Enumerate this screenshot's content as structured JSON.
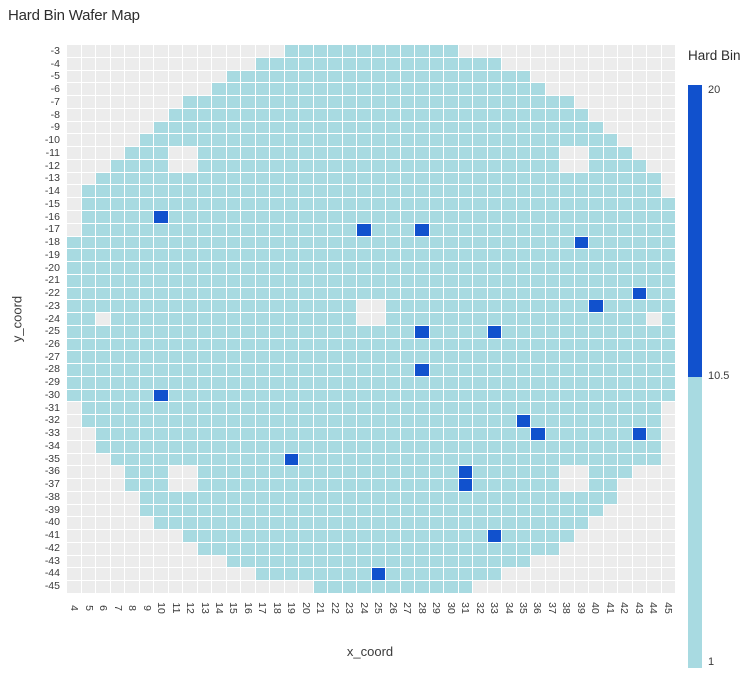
{
  "title": "Hard Bin Wafer Map",
  "axes": {
    "x_label": "x_coord",
    "y_label": "y_coord",
    "x_ticks": [
      "4",
      "5",
      "6",
      "7",
      "8",
      "9",
      "10",
      "11",
      "12",
      "13",
      "14",
      "15",
      "16",
      "17",
      "18",
      "19",
      "20",
      "21",
      "22",
      "23",
      "24",
      "25",
      "26",
      "27",
      "28",
      "29",
      "30",
      "31",
      "32",
      "33",
      "34",
      "35",
      "36",
      "37",
      "38",
      "39",
      "40",
      "41",
      "42",
      "43",
      "44",
      "45"
    ],
    "y_ticks": [
      "-3",
      "-4",
      "-5",
      "-6",
      "-7",
      "-8",
      "-9",
      "-10",
      "-11",
      "-12",
      "-13",
      "-14",
      "-15",
      "-16",
      "-17",
      "-18",
      "-19",
      "-20",
      "-21",
      "-22",
      "-23",
      "-24",
      "-25",
      "-26",
      "-27",
      "-28",
      "-29",
      "-30",
      "-31",
      "-32",
      "-33",
      "-34",
      "-35",
      "-36",
      "-37",
      "-38",
      "-39",
      "-40",
      "-41",
      "-42",
      "-43",
      "-44",
      "-45"
    ]
  },
  "colorbar": {
    "title": "Hard Bin",
    "ticks": [
      {
        "label": "20"
      },
      {
        "label": "10.5"
      },
      {
        "label": "1"
      }
    ],
    "high_value": 20,
    "mid_value": 10.5,
    "low_value": 1
  },
  "chart_data": {
    "type": "heatmap",
    "subtype": "wafer-bin-map",
    "x_range": [
      4,
      45
    ],
    "y_range_top_to_bottom": [
      -3,
      -45
    ],
    "grid_on": true,
    "legend_position": "right",
    "colors": {
      "pass_die": "#a8dae1",
      "fail_die": "#1151cd",
      "plot_background_cell": "#ececec",
      "gridline": "#ffffff"
    },
    "bin_values": {
      "pass_bin": 1,
      "fail_bin": 20
    },
    "wafer_rows": [
      {
        "y": -3,
        "x_min": 19,
        "x_max": 30
      },
      {
        "y": -4,
        "x_min": 17,
        "x_max": 33
      },
      {
        "y": -5,
        "x_min": 15,
        "x_max": 35
      },
      {
        "y": -6,
        "x_min": 14,
        "x_max": 36
      },
      {
        "y": -7,
        "x_min": 12,
        "x_max": 38
      },
      {
        "y": -8,
        "x_min": 11,
        "x_max": 39
      },
      {
        "y": -9,
        "x_min": 10,
        "x_max": 40
      },
      {
        "y": -10,
        "x_min": 9,
        "x_max": 41
      },
      {
        "y": -11,
        "x_min": 8,
        "x_max": 42
      },
      {
        "y": -12,
        "x_min": 7,
        "x_max": 43
      },
      {
        "y": -13,
        "x_min": 6,
        "x_max": 44
      },
      {
        "y": -14,
        "x_min": 5,
        "x_max": 44
      },
      {
        "y": -15,
        "x_min": 5,
        "x_max": 45
      },
      {
        "y": -16,
        "x_min": 5,
        "x_max": 45
      },
      {
        "y": -17,
        "x_min": 5,
        "x_max": 45
      },
      {
        "y": -18,
        "x_min": 4,
        "x_max": 45
      },
      {
        "y": -19,
        "x_min": 4,
        "x_max": 45
      },
      {
        "y": -20,
        "x_min": 4,
        "x_max": 45
      },
      {
        "y": -21,
        "x_min": 4,
        "x_max": 45
      },
      {
        "y": -22,
        "x_min": 4,
        "x_max": 45
      },
      {
        "y": -23,
        "x_min": 4,
        "x_max": 45
      },
      {
        "y": -24,
        "x_min": 4,
        "x_max": 45
      },
      {
        "y": -25,
        "x_min": 4,
        "x_max": 45
      },
      {
        "y": -26,
        "x_min": 4,
        "x_max": 45
      },
      {
        "y": -27,
        "x_min": 4,
        "x_max": 45
      },
      {
        "y": -28,
        "x_min": 4,
        "x_max": 45
      },
      {
        "y": -29,
        "x_min": 4,
        "x_max": 45
      },
      {
        "y": -30,
        "x_min": 4,
        "x_max": 45
      },
      {
        "y": -31,
        "x_min": 5,
        "x_max": 44
      },
      {
        "y": -32,
        "x_min": 5,
        "x_max": 44
      },
      {
        "y": -33,
        "x_min": 6,
        "x_max": 44
      },
      {
        "y": -34,
        "x_min": 6,
        "x_max": 44
      },
      {
        "y": -35,
        "x_min": 7,
        "x_max": 44
      },
      {
        "y": -36,
        "x_min": 8,
        "x_max": 42
      },
      {
        "y": -37,
        "x_min": 8,
        "x_max": 41
      },
      {
        "y": -38,
        "x_min": 9,
        "x_max": 41
      },
      {
        "y": -39,
        "x_min": 9,
        "x_max": 40
      },
      {
        "y": -40,
        "x_min": 10,
        "x_max": 39
      },
      {
        "y": -41,
        "x_min": 12,
        "x_max": 38
      },
      {
        "y": -42,
        "x_min": 13,
        "x_max": 37
      },
      {
        "y": -43,
        "x_min": 15,
        "x_max": 35
      },
      {
        "y": -44,
        "x_min": 17,
        "x_max": 33
      },
      {
        "y": -45,
        "x_min": 21,
        "x_max": 31
      }
    ],
    "bin20_cells": [
      [
        10,
        -16
      ],
      [
        24,
        -17
      ],
      [
        28,
        -17
      ],
      [
        39,
        -18
      ],
      [
        43,
        -22
      ],
      [
        40,
        -23
      ],
      [
        28,
        -25
      ],
      [
        33,
        -25
      ],
      [
        28,
        -28
      ],
      [
        10,
        -30
      ],
      [
        35,
        -32
      ],
      [
        36,
        -33
      ],
      [
        43,
        -33
      ],
      [
        19,
        -35
      ],
      [
        31,
        -36
      ],
      [
        31,
        -37
      ],
      [
        33,
        -41
      ],
      [
        25,
        -44
      ]
    ],
    "missing_cells": [
      [
        11,
        -11
      ],
      [
        12,
        -11
      ],
      [
        38,
        -11
      ],
      [
        39,
        -11
      ],
      [
        11,
        -12
      ],
      [
        12,
        -12
      ],
      [
        38,
        -12
      ],
      [
        39,
        -12
      ],
      [
        24,
        -23
      ],
      [
        25,
        -23
      ],
      [
        6,
        -24
      ],
      [
        24,
        -24
      ],
      [
        25,
        -24
      ],
      [
        44,
        -24
      ],
      [
        11,
        -36
      ],
      [
        12,
        -36
      ],
      [
        38,
        -36
      ],
      [
        39,
        -36
      ],
      [
        11,
        -37
      ],
      [
        12,
        -37
      ],
      [
        38,
        -37
      ],
      [
        39,
        -37
      ]
    ]
  }
}
